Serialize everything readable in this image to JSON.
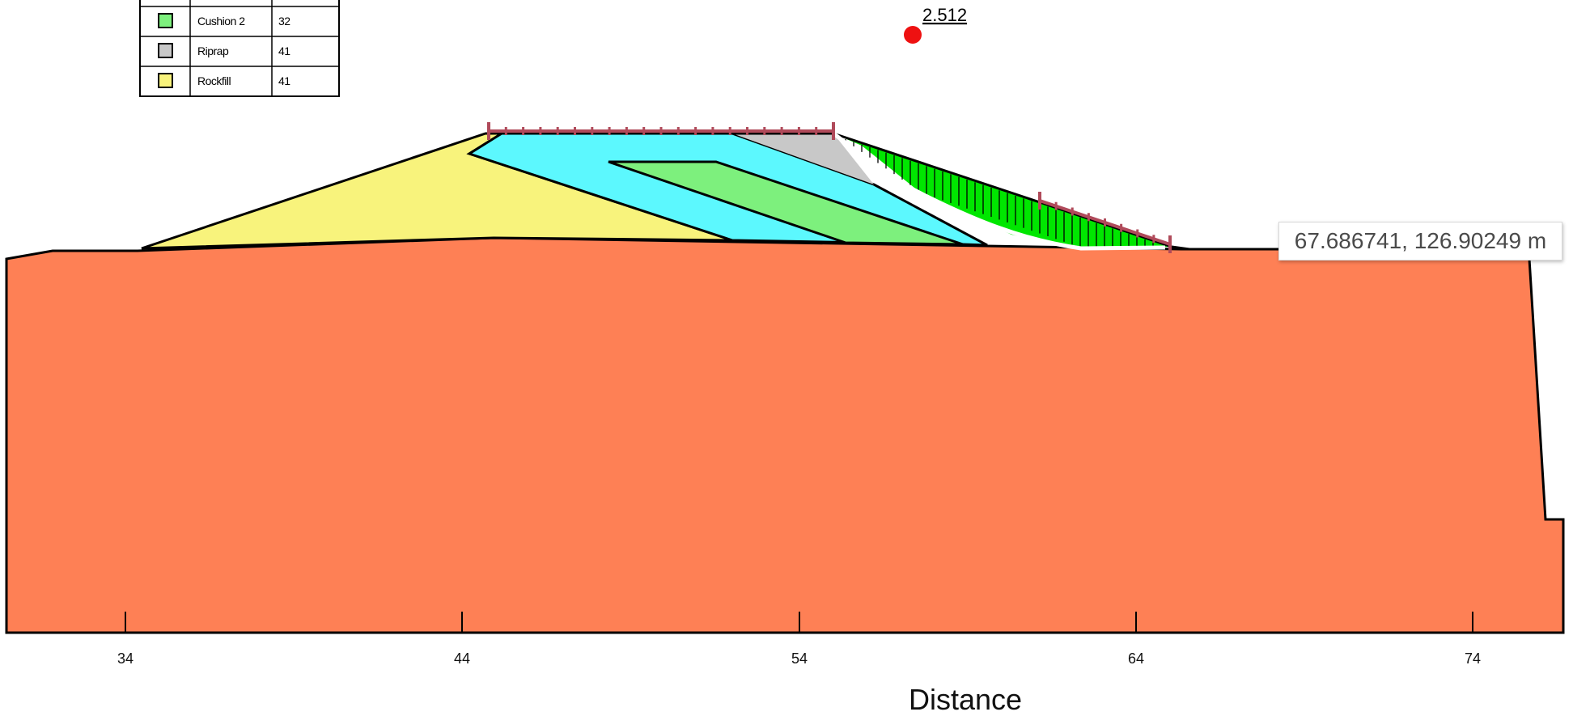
{
  "legend": {
    "rows": [
      {
        "name": "Cushion 2",
        "value": "32",
        "color": "#7df07d"
      },
      {
        "name": "Riprap",
        "value": "41",
        "color": "#c8c8c8"
      },
      {
        "name": "Rockfill",
        "value": "41",
        "color": "#f8f37c"
      }
    ]
  },
  "factor_of_safety": "2.512",
  "tooltip": "67.686741, 126.90249 m",
  "axis": {
    "title": "Distance",
    "ticks": [
      "34",
      "44",
      "54",
      "64",
      "74"
    ]
  },
  "colors": {
    "foundation": "#fe8055",
    "filter": "#5cf8fe",
    "cushion": "#7df07d",
    "riprap": "#c8c8c8",
    "rockfill": "#f8f37c",
    "slip_mass": "#00e600",
    "slip_surface": "#ffffff",
    "boundary_marker": "#b04a5a",
    "fs_center": "#ee1111"
  }
}
